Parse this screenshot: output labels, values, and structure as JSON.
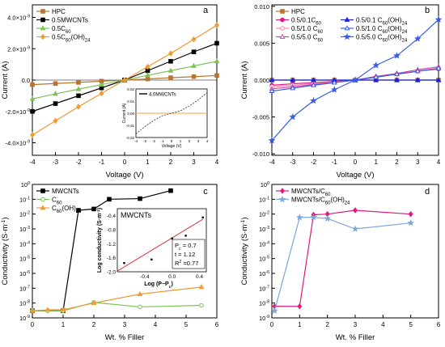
{
  "chart_data": [
    {
      "panel": "a",
      "type": "line",
      "xlabel": "Voltage (V)",
      "ylabel": "Current (A)",
      "xlim": [
        -4,
        4
      ],
      "ylim": [
        -4.8e-09,
        4.8e-09
      ],
      "xticks": [
        -4,
        -3,
        -2,
        -1,
        0,
        1,
        2,
        3,
        4
      ],
      "xtick_labels": [
        "-4",
        "-3",
        "-2",
        "-1",
        "0",
        "1",
        "2",
        "3",
        "4"
      ],
      "yticks": [
        -4e-09,
        -2e-09,
        0,
        2e-09,
        4e-09
      ],
      "ytick_labels": [
        "-4.0×10⁻⁹",
        "-2.0×10⁻⁹",
        "0.0",
        "2.0×10⁻⁹",
        "4.0×10⁻⁹"
      ],
      "legend": "top-left",
      "series": [
        {
          "name": "HPC",
          "color": "#b8742f",
          "marker": "square",
          "x": [
            -4,
            -3,
            -2,
            -1,
            0,
            1,
            2,
            3,
            4
          ],
          "y": [
            -2.9e-10,
            -2.2e-10,
            -1.5e-10,
            -7e-11,
            0,
            7e-11,
            1.5e-10,
            2.2e-10,
            2.9e-10
          ]
        },
        {
          "name": "0.5MWCNTs",
          "color": "#000000",
          "marker": "square",
          "x": [
            -4,
            -3,
            -2,
            -1,
            0,
            1,
            2,
            3,
            4
          ],
          "y": [
            -2e-09,
            -1.5e-09,
            -1e-09,
            -5e-10,
            0,
            6e-10,
            1.2e-09,
            1.8e-09,
            2.35e-09
          ]
        },
        {
          "name": "0.5C60",
          "display_name": "0.5C₆₀",
          "color": "#7ec255",
          "marker": "triangle",
          "x": [
            -4,
            -3,
            -2,
            -1,
            0,
            1,
            2,
            3,
            4
          ],
          "y": [
            -1.2e-09,
            -8.8e-10,
            -5.8e-10,
            -2.9e-10,
            0,
            3e-10,
            6e-10,
            9e-10,
            1.2e-09
          ]
        },
        {
          "name": "0.5C60(OH)24",
          "display_name": "0.5C₆₀(OH)₂₄",
          "color": "#f09a34",
          "marker": "diamond",
          "x": [
            -4,
            -3,
            -2,
            -1,
            0,
            1,
            2,
            3,
            4
          ],
          "y": [
            -3.5e-09,
            -2.6e-09,
            -1.7e-09,
            -8.5e-10,
            0,
            8.5e-10,
            1.7e-09,
            2.6e-09,
            3.5e-09
          ]
        }
      ],
      "inset": {
        "series_name": "4.0MWCNTs",
        "xlabel": "Voltage (V)",
        "ylabel": "Current (A)",
        "xlim": [
          -4,
          4
        ],
        "ylim": [
          -0.02,
          0.02
        ],
        "xtick_labels": [
          "-4",
          "-3",
          "-2",
          "-1",
          "0",
          "1",
          "2",
          "3",
          "4"
        ],
        "ytick_labels": [
          "-0.02",
          "-0.01",
          "0.00",
          "0.01",
          "0.02"
        ],
        "x": [
          -4,
          -3,
          -2,
          -1,
          0,
          1,
          2,
          3,
          4
        ],
        "y": [
          -0.017,
          -0.011,
          -0.006,
          -0.002,
          0,
          0.002,
          0.006,
          0.011,
          0.017
        ],
        "reference_y": 0,
        "reference_color": "#f2a33a"
      }
    },
    {
      "panel": "b",
      "type": "line",
      "xlabel": "Voltage (V)",
      "ylabel": "Current (A)",
      "xlim": [
        -4,
        4
      ],
      "ylim": [
        -0.0102,
        0.0102
      ],
      "xticks": [
        -4,
        -3,
        -2,
        -1,
        0,
        1,
        2,
        3,
        4
      ],
      "xtick_labels": [
        "-4",
        "-3",
        "-2",
        "-1",
        "0",
        "1",
        "2",
        "3",
        "4"
      ],
      "yticks": [
        -0.01,
        -0.005,
        0,
        0.005,
        0.01
      ],
      "ytick_labels": [
        "-0.010",
        "-0.005",
        "0.000",
        "0.005",
        "0.010"
      ],
      "legend": "top-left",
      "series": [
        {
          "name": "HPC",
          "color": "#b8742f",
          "marker": "square",
          "x": [
            -4,
            -3,
            -2,
            -1,
            0,
            1,
            2,
            3,
            4
          ],
          "y": [
            0,
            0,
            0,
            0,
            0,
            0,
            0,
            0,
            0
          ]
        },
        {
          "name": "0.5/0.1C60",
          "display_name": "0.5/0.1C₆₀",
          "color": "#e0197d",
          "marker": "circle",
          "x": [
            -4,
            -3,
            -2,
            -1,
            0,
            1,
            2,
            3,
            4
          ],
          "y": [
            -0.0007,
            -0.0005,
            -0.00035,
            -0.00017,
            0,
            0.0004,
            0.0008,
            0.0012,
            0.0015
          ]
        },
        {
          "name": "0.5/1.0 C60",
          "display_name": "0.5/1.0 C₆₀",
          "color": "#ff88b0",
          "marker": "circle-open",
          "x": [
            -4,
            -3,
            -2,
            -1,
            0,
            1,
            2,
            3,
            4
          ],
          "y": [
            -0.0009,
            -0.0007,
            -0.0005,
            -0.00025,
            0,
            0.0004,
            0.0008,
            0.0012,
            0.0016
          ]
        },
        {
          "name": "0.5/5.0 C60",
          "display_name": "0.5/5.0 C₆₀",
          "color": "#cc44aa",
          "marker": "triangle-open",
          "x": [
            -4,
            -3,
            -2,
            -1,
            0,
            1,
            2,
            3,
            4
          ],
          "y": [
            -0.0012,
            -0.0009,
            -0.0006,
            -0.0003,
            0,
            0.0005,
            0.0009,
            0.0014,
            0.0018
          ]
        },
        {
          "name": "0.5/0.1 C60(OH)24",
          "display_name": "0.5/0.1 C₆₀(OH)₂₄",
          "color": "#1a22d8",
          "marker": "triangle",
          "x": [
            -4,
            -3,
            -2,
            -1,
            0,
            1,
            2,
            3,
            4
          ],
          "y": [
            0,
            0,
            0,
            0,
            0,
            0,
            0,
            0,
            0
          ]
        },
        {
          "name": "0.5/1.0 C60(OH)24",
          "display_name": "0.5/1.0 C₆₀(OH)₂₄",
          "color": "#3a5be8",
          "marker": "triangle-open",
          "x": [
            -4,
            -3,
            -2,
            -1,
            0,
            1,
            2,
            3,
            4
          ],
          "y": [
            -0.0015,
            -0.0011,
            -0.0007,
            -0.00035,
            0,
            0.0004,
            0.0008,
            0.0012,
            0.0016
          ]
        },
        {
          "name": "0.5/5.0 C60(OH)24",
          "display_name": "0.5/5.0 C₆₀(OH)₂₄",
          "color": "#3a5be8",
          "marker": "star",
          "x": [
            -4,
            -3,
            -2,
            -1,
            0,
            1,
            2,
            3,
            4
          ],
          "y": [
            -0.0082,
            -0.005,
            -0.0028,
            -0.0013,
            0,
            0.002,
            0.0033,
            0.0056,
            0.0082
          ]
        }
      ]
    },
    {
      "panel": "c",
      "type": "line",
      "xlabel": "Wt. % Filler",
      "ylabel": "Conductivity (S·m⁻¹)",
      "xlim": [
        0,
        6
      ],
      "ylim": [
        1e-09,
        1
      ],
      "yscale": "log",
      "xticks": [
        0,
        1,
        2,
        3,
        4,
        5,
        6
      ],
      "xtick_labels": [
        "0",
        "1",
        "2",
        "3",
        "4",
        "5",
        "6"
      ],
      "yticks": [
        1e-09,
        1e-08,
        1e-07,
        1e-06,
        1e-05,
        0.0001,
        0.001,
        0.01,
        0.1,
        1
      ],
      "ytick_labels": [
        "10⁻⁹",
        "10⁻⁸",
        "10⁻⁷",
        "10⁻⁶",
        "10⁻⁵",
        "10⁻⁴",
        "10⁻³",
        "10⁻²",
        "10⁻¹",
        "10⁰"
      ],
      "legend": "top-left",
      "series": [
        {
          "name": "MWCNTs",
          "color": "#000000",
          "marker": "square",
          "x": [
            0,
            1,
            1.5,
            2,
            2.5,
            3.5,
            4.5
          ],
          "y": [
            3e-09,
            3e-09,
            0.018,
            0.022,
            0.1,
            0.11,
            0.38
          ]
        },
        {
          "name": "C60",
          "display_name": "C₆₀",
          "color": "#7ec255",
          "marker": "circle-open",
          "x": [
            0,
            0.5,
            1,
            2,
            3.5,
            5.5
          ],
          "y": [
            3e-09,
            3e-09,
            3e-09,
            1.1e-08,
            5.5e-09,
            7e-09
          ]
        },
        {
          "name": "C60(OH)24",
          "display_name": "C₆₀(OH)₂₄",
          "color": "#f09a34",
          "marker": "triangle",
          "x": [
            0,
            0.5,
            1,
            2,
            3.5,
            5.5
          ],
          "y": [
            3e-09,
            3.5e-09,
            3.5e-09,
            1e-08,
            4e-08,
            1.2e-07
          ]
        }
      ],
      "inset": {
        "title": "MWCNTs",
        "xlabel": "Log (P−P",
        "xlabel_sub": "c",
        "xlabel_end": ")",
        "ylabel": "Log conductivity (S·m⁻¹)",
        "xlim": [
          -0.8,
          0.5
        ],
        "ylim": [
          -2.0,
          -0.2
        ],
        "xtick_labels": [
          "-0.4",
          "0.0",
          "0.4"
        ],
        "ytick_labels": [
          "-2.0",
          "-1.6",
          "-1.2",
          "-0.8",
          "-0.4"
        ],
        "points_x": [
          -0.7,
          -0.3,
          0.0,
          0.2,
          0.45
        ],
        "points_y": [
          -1.75,
          -1.65,
          -1.05,
          -0.97,
          -0.45
        ],
        "fit_x": [
          -0.8,
          0.45
        ],
        "fit_y": [
          -1.98,
          -0.5
        ],
        "fit_color": "#e02020",
        "annotations": [
          {
            "label": "P",
            "sub": "c",
            "value": "= 0.7"
          },
          {
            "label": "t",
            "sub": "",
            "value": "= 1.12"
          },
          {
            "label": "R",
            "sup": "2",
            "value": "=0.77"
          }
        ]
      }
    },
    {
      "panel": "d",
      "type": "line",
      "xlabel": "Wt. % Filler",
      "ylabel": "Conductivity (S·m⁻¹)",
      "xlim": [
        0,
        6
      ],
      "ylim": [
        1e-09,
        1
      ],
      "yscale": "log",
      "xticks": [
        0,
        1,
        2,
        3,
        4,
        5,
        6
      ],
      "xtick_labels": [
        "0",
        "1",
        "2",
        "3",
        "4",
        "5",
        "6"
      ],
      "yticks": [
        1e-09,
        1e-08,
        1e-07,
        1e-06,
        1e-05,
        0.0001,
        0.001,
        0.01,
        0.1,
        1
      ],
      "ytick_labels": [
        "10⁻⁹",
        "10⁻⁸",
        "10⁻⁷",
        "10⁻⁶",
        "10⁻⁵",
        "10⁻⁴",
        "10⁻³",
        "10⁻²",
        "10⁻¹",
        "10⁰"
      ],
      "legend": "top-left",
      "series": [
        {
          "name": "MWCNTs/C60",
          "display_name": "MWCNTs/C₆₀",
          "color": "#e0197d",
          "marker": "diamond",
          "x": [
            0.1,
            1,
            1.5,
            2,
            3,
            5
          ],
          "y": [
            6e-09,
            6e-09,
            0.009,
            0.01,
            0.018,
            0.01
          ]
        },
        {
          "name": "MWCNTs/C60(OH)24",
          "display_name": "MWCNTs/C₆₀(OH)₂₄",
          "color": "#7aa8d8",
          "marker": "star",
          "x": [
            0.1,
            1,
            1.5,
            2,
            3,
            5
          ],
          "y": [
            3e-09,
            0.006,
            0.006,
            0.005,
            0.001,
            0.0025
          ]
        }
      ]
    }
  ]
}
